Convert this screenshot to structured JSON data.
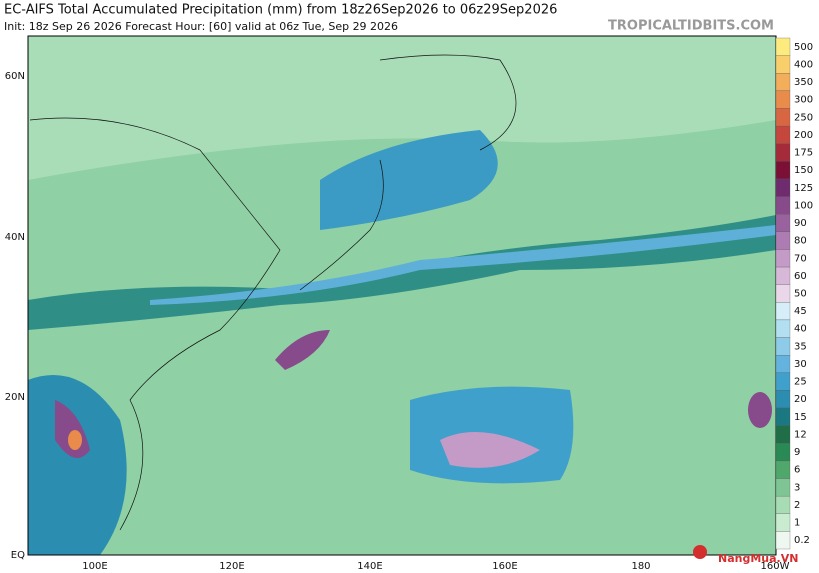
{
  "header": {
    "title": "EC-AIFS Total Accumulated Precipitation (mm) from 18z26Sep2026 to 06z29Sep2026",
    "subtitle": "Init: 18z Sep 26 2026   Forecast Hour: [60]   valid at 06z Tue, Sep 29 2026",
    "watermark": "TROPICALTIDBITS.COM"
  },
  "map": {
    "lat_labels": [
      "60N",
      "40N",
      "20N",
      "EQ"
    ],
    "lon_labels": [
      "100E",
      "120E",
      "140E",
      "160E",
      "180",
      "160W"
    ]
  },
  "colorbar": [
    {
      "label": "500",
      "color": "#fdeb7f"
    },
    {
      "label": "400",
      "color": "#f8cf6a"
    },
    {
      "label": "350",
      "color": "#f2ae5a"
    },
    {
      "label": "300",
      "color": "#e98b4b"
    },
    {
      "label": "250",
      "color": "#d96642"
    },
    {
      "label": "200",
      "color": "#c4463c"
    },
    {
      "label": "175",
      "color": "#a52a3a"
    },
    {
      "label": "150",
      "color": "#7a1035"
    },
    {
      "label": "125",
      "color": "#6e2c6f"
    },
    {
      "label": "100",
      "color": "#874a8b"
    },
    {
      "label": "90",
      "color": "#9a619f"
    },
    {
      "label": "80",
      "color": "#ac7cb3"
    },
    {
      "label": "70",
      "color": "#c49ac7"
    },
    {
      "label": "60",
      "color": "#d7b8d8"
    },
    {
      "label": "50",
      "color": "#ead7e9"
    },
    {
      "label": "45",
      "color": "#d6eef8"
    },
    {
      "label": "40",
      "color": "#b3dff2"
    },
    {
      "label": "35",
      "color": "#8ecbe9"
    },
    {
      "label": "30",
      "color": "#64b3df"
    },
    {
      "label": "25",
      "color": "#3fa0cc"
    },
    {
      "label": "20",
      "color": "#2b8db0"
    },
    {
      "label": "15",
      "color": "#1a7880"
    },
    {
      "label": "12",
      "color": "#1f6e48"
    },
    {
      "label": "9",
      "color": "#2a8a55"
    },
    {
      "label": "6",
      "color": "#4fa76c"
    },
    {
      "label": "3",
      "color": "#7fc494"
    },
    {
      "label": "2",
      "color": "#a8dcb4"
    },
    {
      "label": "1",
      "color": "#c9ebd0"
    },
    {
      "label": "0.2",
      "color": "#eef8f0"
    }
  ],
  "logo": "NangMua.VN"
}
